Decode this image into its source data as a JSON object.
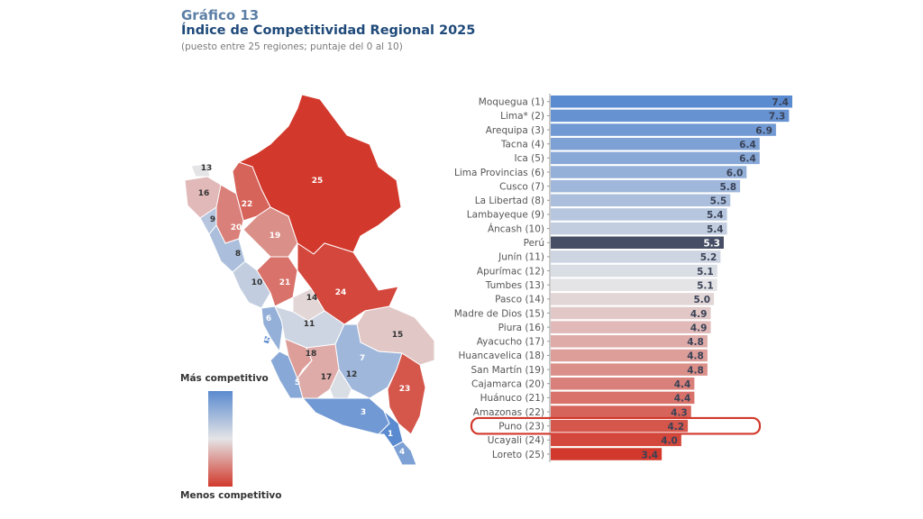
{
  "header": {
    "label": "Gráfico 13",
    "title": "Índice de Competitividad Regional 2025",
    "subtitle": "(puesto entre 25 regiones; puntaje del 0 al 10)"
  },
  "legend": {
    "top": "Más competitivo",
    "bottom": "Menos competitivo"
  },
  "colors": {
    "best": "#5a8acf",
    "neutral": "#e4e4e6",
    "worst": "#d2392c",
    "national": "#454e64",
    "highlight": "#d2392c"
  },
  "chart_data": {
    "type": "bar",
    "orientation": "horizontal",
    "title": "Índice de Competitividad Regional 2025",
    "categories": [
      "Moquegua (1)",
      "Lima* (2)",
      "Arequipa (3)",
      "Tacna (4)",
      "Ica (5)",
      "Lima Provincias (6)",
      "Cusco (7)",
      "La Libertad (8)",
      "Lambayeque (9)",
      "Áncash (10)",
      "Perú",
      "Junín (11)",
      "Apurímac (12)",
      "Tumbes (13)",
      "Pasco (14)",
      "Madre de Dios (15)",
      "Piura (16)",
      "Ayacucho (17)",
      "Huancavelica (18)",
      "San Martín (19)",
      "Cajamarca (20)",
      "Huánuco (21)",
      "Amazonas (22)",
      "Puno (23)",
      "Ucayali (24)",
      "Loreto (25)"
    ],
    "values": [
      7.4,
      7.3,
      6.9,
      6.4,
      6.4,
      6.0,
      5.8,
      5.5,
      5.4,
      5.4,
      5.3,
      5.2,
      5.1,
      5.1,
      5.0,
      4.9,
      4.9,
      4.8,
      4.8,
      4.8,
      4.4,
      4.4,
      4.3,
      4.2,
      4.0,
      3.4
    ],
    "value_labels": [
      "7.4",
      "7.3",
      "6.9",
      "6.4",
      "6.4",
      "6.0",
      "5.8",
      "5.5",
      "5.4",
      "5.4",
      "5.3",
      "5.2",
      "5.1",
      "5.1",
      "5.0",
      "4.9",
      "4.9",
      "4.8",
      "4.8",
      "4.8",
      "4.4",
      "4.4",
      "4.3",
      "4.2",
      "4.0",
      "3.4"
    ],
    "xlim": [
      0,
      7.4
    ],
    "highlighted": "Puno (23)",
    "national": "Perú"
  },
  "map": {
    "region_ranks": [
      "25",
      "22",
      "20",
      "13",
      "16",
      "9",
      "8",
      "19",
      "10",
      "21",
      "24",
      "14",
      "6",
      "2",
      "11",
      "15",
      "7",
      "5",
      "18",
      "17",
      "12",
      "3",
      "23",
      "1",
      "4"
    ]
  }
}
